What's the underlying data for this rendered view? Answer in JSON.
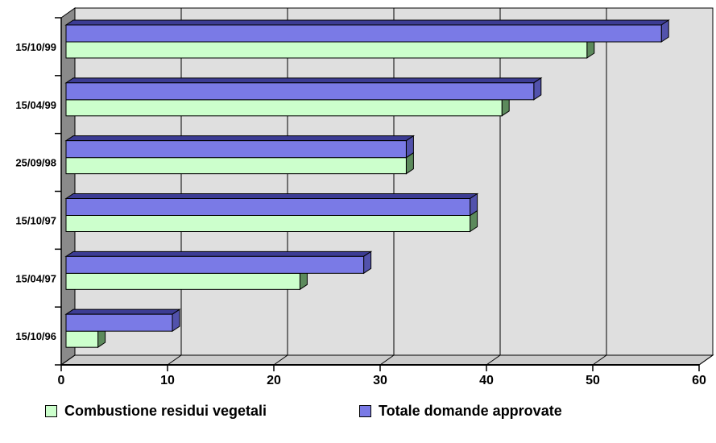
{
  "chart_data": {
    "type": "bar",
    "orientation": "horizontal",
    "style": "3d",
    "title": "",
    "xlabel": "",
    "ylabel": "",
    "xlim": [
      0,
      60
    ],
    "x_ticks": [
      0,
      10,
      20,
      30,
      40,
      50,
      60
    ],
    "grid": true,
    "legend_position": "bottom",
    "categories": [
      "15/10/99",
      "15/04/99",
      "25/09/98",
      "15/10/97",
      "15/04/97",
      "15/10/96"
    ],
    "series": [
      {
        "name": "Totale domande approvate",
        "position_in_group": "top",
        "values": [
          56,
          44,
          32,
          38,
          28,
          10
        ],
        "front_color": "#7A7AE6",
        "top_color": "#3C3C94",
        "side_color": "#5252AC"
      },
      {
        "name": "Combustione residui vegetali",
        "position_in_group": "bottom",
        "values": [
          49,
          41,
          32,
          38,
          22,
          3
        ],
        "front_color": "#CCFFCC",
        "top_color": "#5C8A5C",
        "side_color": "#5C8A5C"
      }
    ]
  },
  "legend": {
    "items": [
      {
        "label": "Combustione residui vegetali",
        "color": "#CCFFCC"
      },
      {
        "label": "Totale domande approvate",
        "color": "#7A7AE6"
      }
    ]
  },
  "colors": {
    "background": "#FFFFFF",
    "back_wall": "#DFDFDF",
    "side_wall": "#8A8A8A",
    "floor": "#CBCBCB",
    "gridline": "#000000",
    "axis": "#000000",
    "text": "#000000"
  }
}
